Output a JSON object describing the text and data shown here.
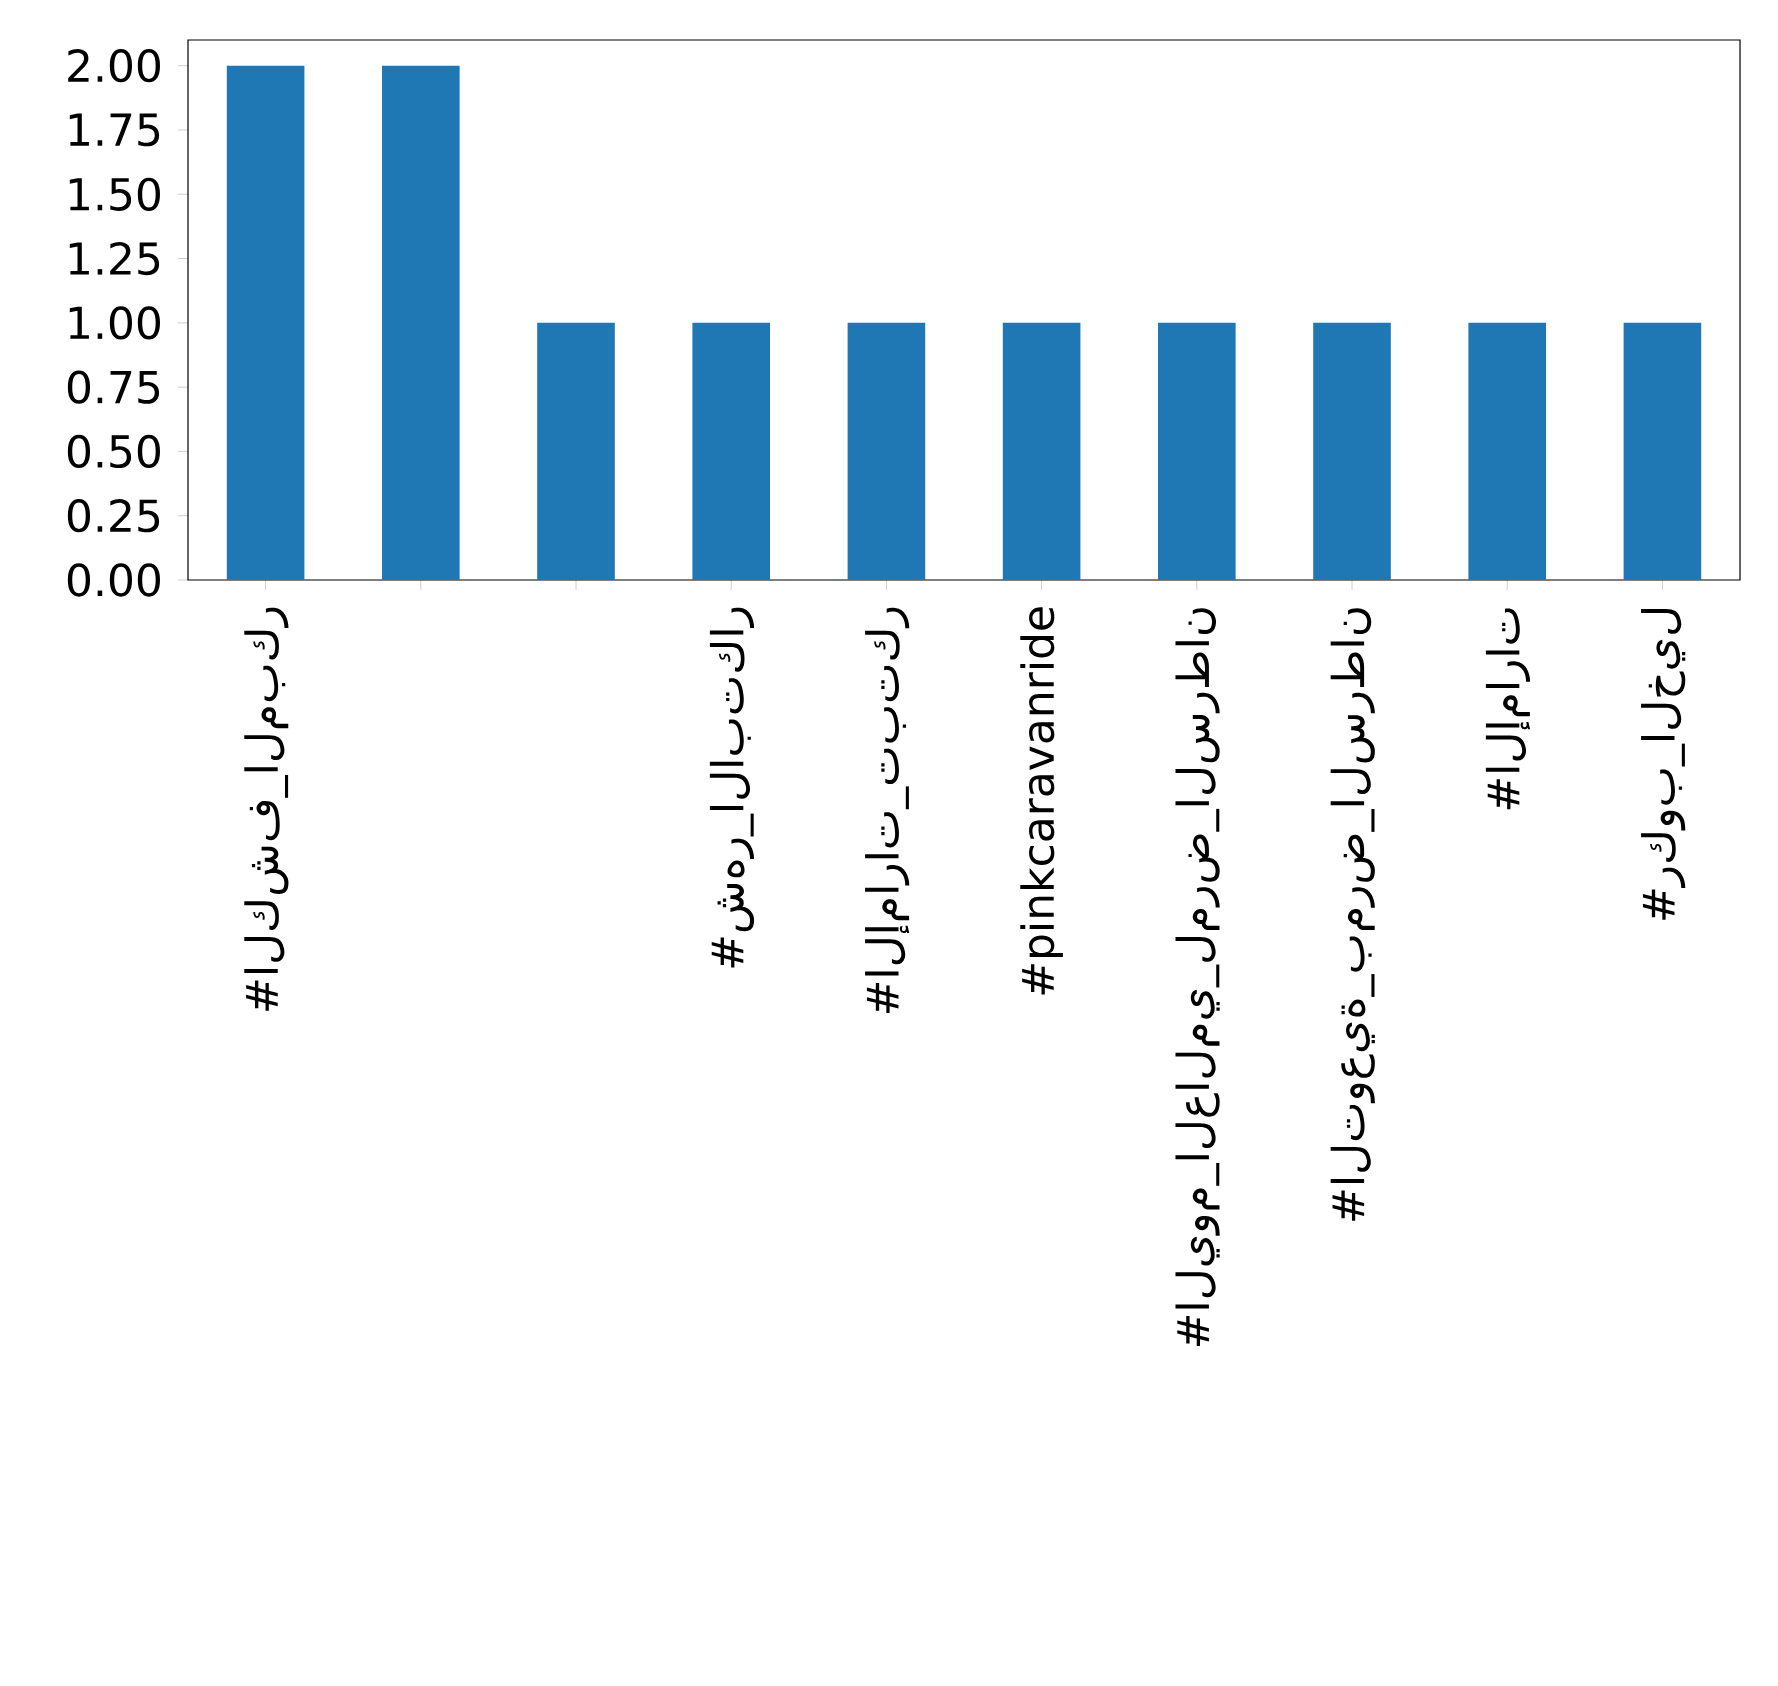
{
  "chart_data": {
    "type": "bar",
    "categories": [
      "#الكشف_المبكر",
      null,
      null,
      "#شهر_الابتكار",
      "#الإمارات_تبتكر",
      "#pinkcaravanride",
      "#اليوم_العالمي_لمرض_السرطان",
      "#التوعية_بمرض_السرطان",
      "#الإمارات",
      "#ركوب_الخيل"
    ],
    "values": [
      2,
      2,
      1,
      1,
      1,
      1,
      1,
      1,
      1,
      1
    ],
    "color": "#1f77b4",
    "ylim": [
      0,
      2.1
    ],
    "yticks": [
      {
        "value": 0,
        "label": "0.00"
      },
      {
        "value": 0.25,
        "label": "0.25"
      },
      {
        "value": 0.5,
        "label": "0.50"
      },
      {
        "value": 0.75,
        "label": "0.75"
      },
      {
        "value": 1,
        "label": "1.00"
      },
      {
        "value": 1.25,
        "label": "1.25"
      },
      {
        "value": 1.5,
        "label": "1.50"
      },
      {
        "value": 1.75,
        "label": "1.75"
      },
      {
        "value": 2,
        "label": "2.00"
      }
    ],
    "grid": false
  }
}
